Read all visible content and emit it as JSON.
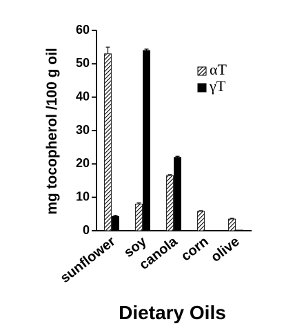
{
  "chart_data": {
    "type": "bar",
    "xlabel": "Dietary Oils",
    "ylabel": "mg tocopherol /100 g oil",
    "categories": [
      "sunflower",
      "soy",
      "canola",
      "corn",
      "olive"
    ],
    "series": [
      {
        "name": "αT",
        "color": "#000000",
        "pattern": "hatch",
        "values": [
          53,
          8,
          16.5,
          5.8,
          3.5
        ],
        "errors": [
          2,
          0.3,
          0.3,
          0.2,
          0.2
        ]
      },
      {
        "name": "γT",
        "color": "#000000",
        "pattern": "solid",
        "values": [
          4.3,
          54,
          22,
          0,
          0.2
        ],
        "errors": [
          0.3,
          0.4,
          0.3,
          null,
          null
        ]
      }
    ],
    "ylim": [
      0,
      60
    ],
    "yticks": [
      0,
      10,
      20,
      30,
      40,
      50,
      60
    ],
    "legend": "upper right"
  }
}
